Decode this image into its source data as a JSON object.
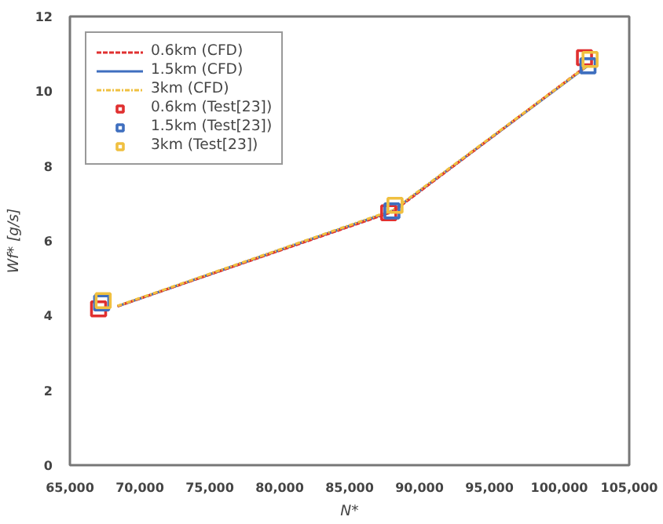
{
  "chart_data": {
    "type": "line",
    "xlabel": "N*",
    "ylabel": "Wf* [g/s]",
    "xlim": [
      65000,
      105000
    ],
    "xticks": [
      {
        "value": 65000,
        "label": "65,000"
      },
      {
        "value": 70000,
        "label": "70,000"
      },
      {
        "value": 75000,
        "label": "75,000"
      },
      {
        "value": 80000,
        "label": "80,000"
      },
      {
        "value": 85000,
        "label": "85,000"
      },
      {
        "value": 90000,
        "label": "90,000"
      },
      {
        "value": 95000,
        "label": "95,000"
      },
      {
        "value": 100000,
        "label": "100,000"
      },
      {
        "value": 105000,
        "label": "105,000"
      }
    ],
    "ylim": [
      0,
      12
    ],
    "yticks": [
      0,
      2,
      4,
      6,
      8,
      10,
      12
    ],
    "grid": false,
    "legend": "top left",
    "series": [
      {
        "name": "0.6km (CFD)",
        "color": "#e03030",
        "line_style": "dashed",
        "marker": "none",
        "x": [
          68400,
          88100,
          102100
        ],
        "values": [
          4.25,
          6.78,
          10.72
        ]
      },
      {
        "name": "1.5km (CFD)",
        "color": "#3f6fbf",
        "line_style": "solid",
        "marker": "none",
        "x": [
          68400,
          88100,
          102100
        ],
        "values": [
          4.25,
          6.8,
          10.7
        ]
      },
      {
        "name": "3km (CFD)",
        "color": "#f0c040",
        "line_style": "dashdot",
        "marker": "none",
        "x": [
          68400,
          88100,
          102100
        ],
        "values": [
          4.26,
          6.82,
          10.71
        ]
      },
      {
        "name": "0.6km (Test[23])",
        "type": "scatter",
        "color": "#e03030",
        "marker": "square",
        "x": [
          67050,
          87800,
          101800
        ],
        "values": [
          4.18,
          6.75,
          10.9
        ]
      },
      {
        "name": "1.5km (Test[23])",
        "type": "scatter",
        "color": "#3f6fbf",
        "marker": "square",
        "x": [
          67270,
          88030,
          102050
        ],
        "values": [
          4.34,
          6.8,
          10.68
        ]
      },
      {
        "name": "3km (Test[23])",
        "type": "scatter",
        "color": "#f0c040",
        "marker": "square",
        "x": [
          67380,
          88250,
          102200
        ],
        "values": [
          4.4,
          6.95,
          10.85
        ]
      }
    ]
  }
}
